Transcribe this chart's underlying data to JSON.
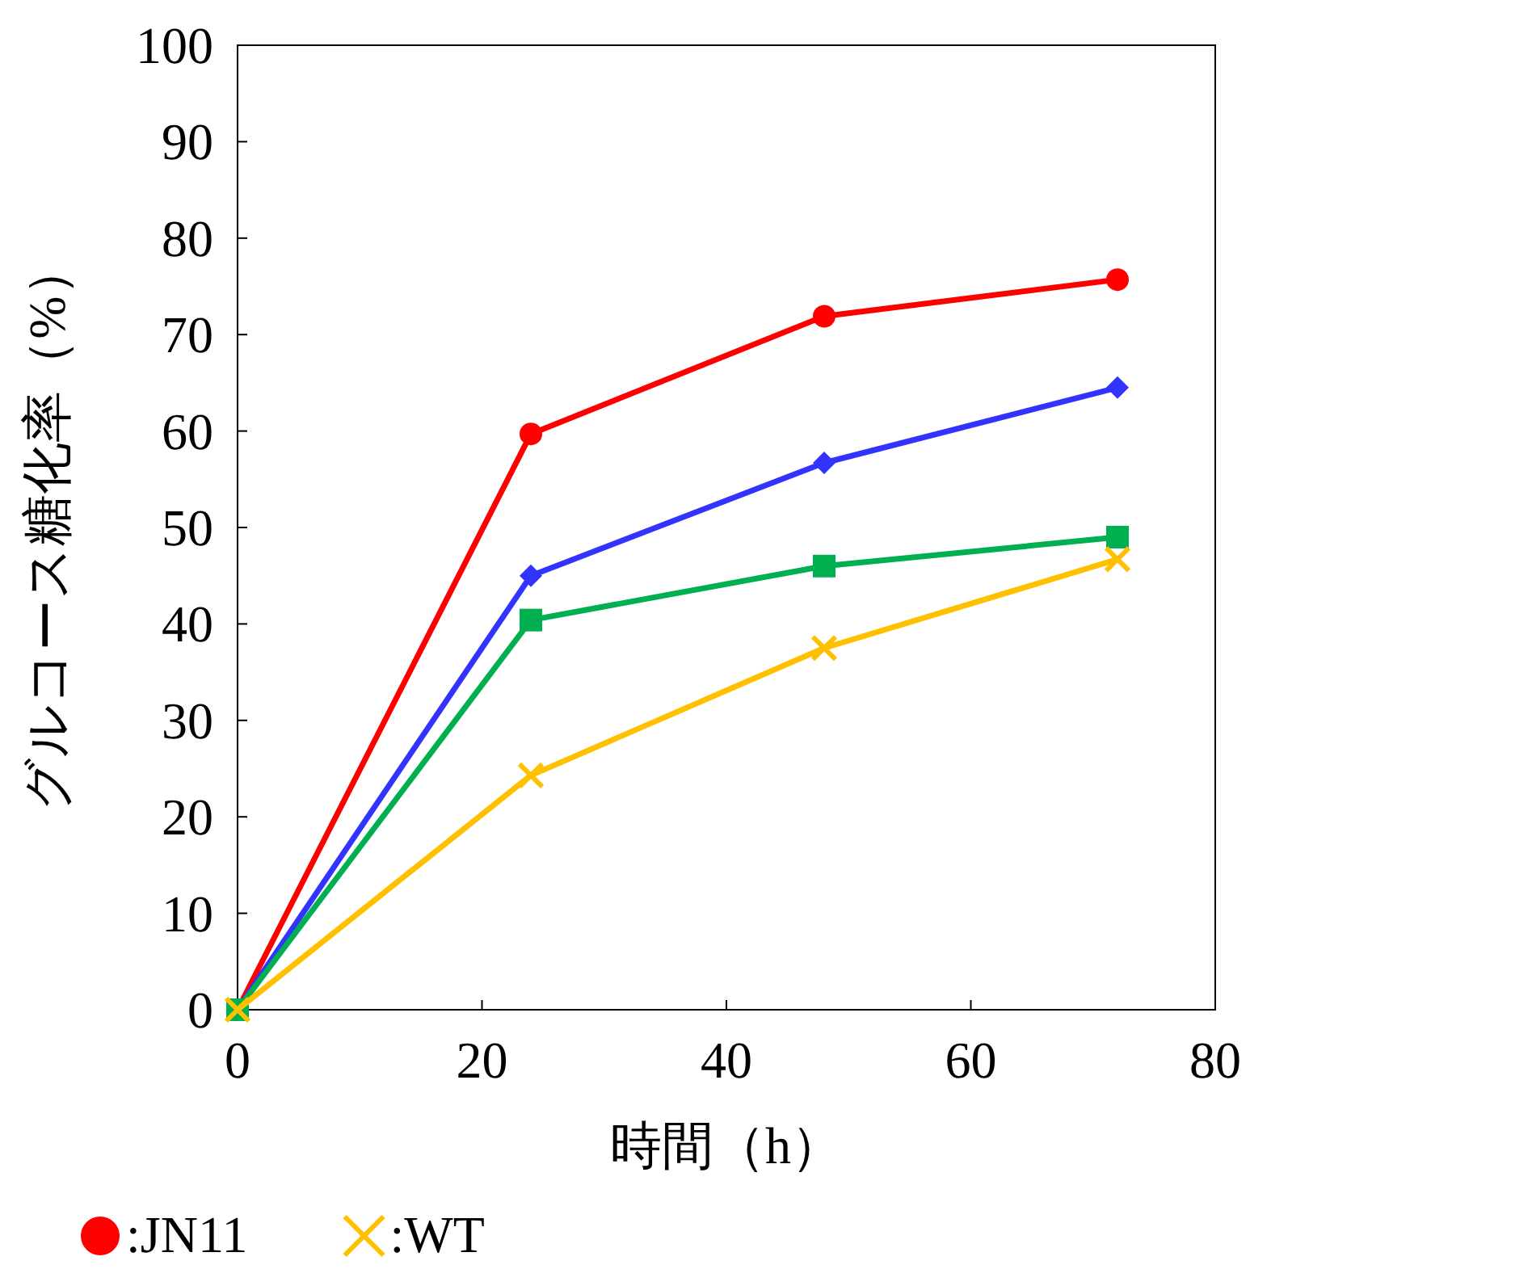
{
  "chart_data": {
    "type": "line",
    "xlabel": "時間（h）",
    "ylabel": "グルコース糖化率（%）",
    "x": [
      0,
      24,
      48,
      72
    ],
    "xlim": [
      0,
      80
    ],
    "xticks": [
      0,
      20,
      40,
      60,
      80
    ],
    "ylim": [
      0,
      100
    ],
    "yticks": [
      0,
      10,
      20,
      30,
      40,
      50,
      60,
      70,
      80,
      90,
      100
    ],
    "grid": false,
    "legend": "bottom",
    "series": [
      {
        "name": ":JN11",
        "color": "#ff0000",
        "marker": "circle",
        "values": [
          0,
          59.7,
          71.9,
          75.7
        ]
      },
      {
        "color": "#3333ff",
        "marker": "diamond",
        "values": [
          0,
          45,
          56.7,
          64.5
        ]
      },
      {
        "color": "#00b050",
        "marker": "square",
        "values": [
          0,
          40.4,
          46,
          49
        ]
      },
      {
        "name": ":WT",
        "color": "#ffc000",
        "marker": "cross",
        "values": [
          0,
          24.3,
          37.5,
          46.7
        ]
      }
    ]
  }
}
